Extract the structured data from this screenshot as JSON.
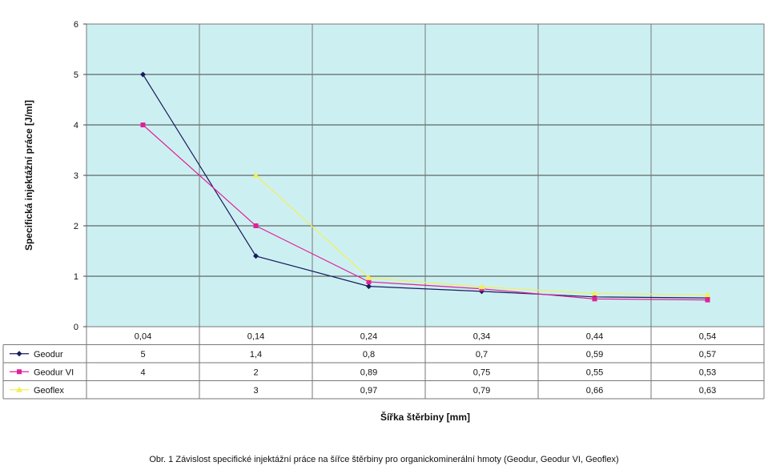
{
  "chart_data": {
    "type": "line",
    "categories": [
      "0,04",
      "0,14",
      "0,24",
      "0,34",
      "0,44",
      "0,54"
    ],
    "series": [
      {
        "name": "Geodur",
        "values": [
          5,
          1.4,
          0.8,
          0.7,
          0.59,
          0.57
        ],
        "labels": [
          "5",
          "1,4",
          "0,8",
          "0,7",
          "0,59",
          "0,57"
        ],
        "color": "#1a1a5c",
        "marker": "diamond"
      },
      {
        "name": "Geodur VI",
        "values": [
          4,
          2,
          0.89,
          0.75,
          0.55,
          0.53
        ],
        "labels": [
          "4",
          "2",
          "0,89",
          "0,75",
          "0,55",
          "0,53"
        ],
        "color": "#e0219a",
        "marker": "square"
      },
      {
        "name": "Geoflex",
        "values": [
          null,
          3,
          0.97,
          0.79,
          0.66,
          0.63
        ],
        "labels": [
          "",
          "3",
          "0,97",
          "0,79",
          "0,66",
          "0,63"
        ],
        "color": "#f2ef5a",
        "marker": "triangle"
      }
    ],
    "yticks": [
      "0",
      "1",
      "2",
      "3",
      "4",
      "5",
      "6"
    ],
    "ylim": [
      0,
      6
    ],
    "ylabel": "Specifická injektážní práce [J/ml]",
    "xlabel": "Šířka štěrbiny [mm]",
    "grid": true,
    "legend": "data-table-left",
    "plot_background": "#ccf0f2"
  },
  "caption": "Obr. 1  Závislost specifické injektážní práce na šířce štěrbiny pro organickominerální hmoty (Geodur, Geodur VI, Geoflex)"
}
